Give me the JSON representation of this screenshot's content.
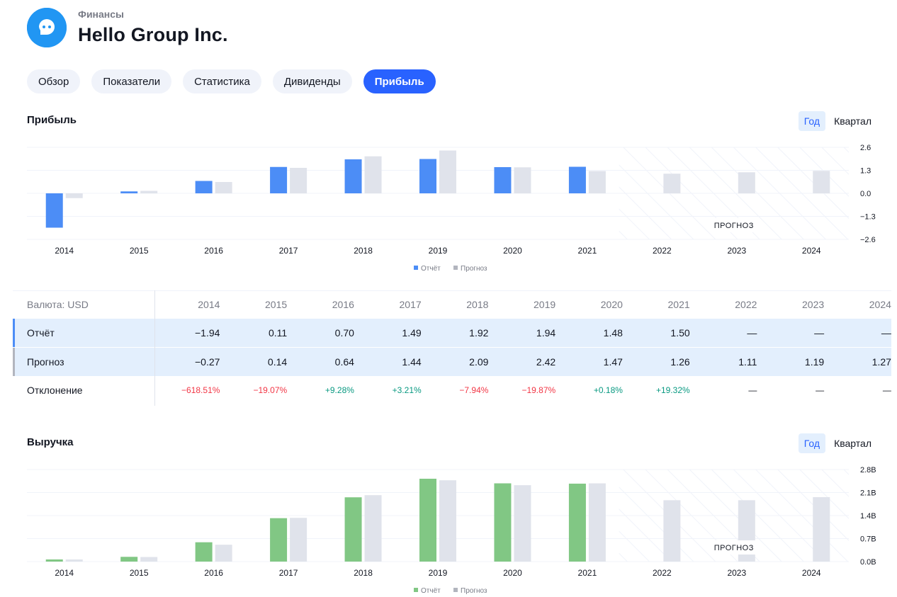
{
  "header": {
    "breadcrumb": "Финансы",
    "title": "Hello Group Inc."
  },
  "tabs": [
    {
      "label": "Обзор",
      "active": false
    },
    {
      "label": "Показатели",
      "active": false
    },
    {
      "label": "Статистика",
      "active": false
    },
    {
      "label": "Дивиденды",
      "active": false
    },
    {
      "label": "Прибыль",
      "active": true
    }
  ],
  "colors": {
    "accent": "#2962ff",
    "earnings_bar": "#4c8df6",
    "revenue_bar": "#81c784",
    "estimate_bar": "#e0e3eb",
    "negative": "#f23645",
    "positive": "#089981"
  },
  "earnings": {
    "title": "Прибыль",
    "period_buttons": [
      {
        "label": "Год",
        "active": true
      },
      {
        "label": "Квартал",
        "active": false
      }
    ],
    "chart_data": {
      "type": "bar",
      "categories": [
        "2014",
        "2015",
        "2016",
        "2017",
        "2018",
        "2019",
        "2020",
        "2021",
        "2022",
        "2023",
        "2024"
      ],
      "series": [
        {
          "name": "Отчёт",
          "values": [
            -1.94,
            0.11,
            0.7,
            1.49,
            1.92,
            1.94,
            1.48,
            1.5,
            null,
            null,
            null
          ]
        },
        {
          "name": "Прогноз",
          "values": [
            -0.27,
            0.14,
            0.64,
            1.44,
            2.09,
            2.42,
            1.47,
            1.26,
            1.11,
            1.19,
            1.27
          ]
        }
      ],
      "yticks": [
        "2.6",
        "1.3",
        "0.0",
        "−1.3",
        "−2.6"
      ],
      "ylim": [
        -2.6,
        2.6
      ],
      "forecast_label": "ПРОГНОЗ",
      "forecast_from": "2022",
      "legend": [
        "Отчёт",
        "Прогноз"
      ],
      "legend_position": "bottom-center"
    }
  },
  "table": {
    "currency_label": "Валюта: USD",
    "years": [
      "2014",
      "2015",
      "2016",
      "2017",
      "2018",
      "2019",
      "2020",
      "2021",
      "2022",
      "2023",
      "2024"
    ],
    "rows": [
      {
        "label": "Отчёт",
        "values": [
          "−1.94",
          "0.11",
          "0.70",
          "1.49",
          "1.92",
          "1.94",
          "1.48",
          "1.50",
          "—",
          "—",
          "—"
        ]
      },
      {
        "label": "Прогноз",
        "values": [
          "−0.27",
          "0.14",
          "0.64",
          "1.44",
          "2.09",
          "2.42",
          "1.47",
          "1.26",
          "1.11",
          "1.19",
          "1.27"
        ]
      },
      {
        "label": "Отклонение",
        "values": [
          "−618.51%",
          "−19.07%",
          "+9.28%",
          "+3.21%",
          "−7.94%",
          "−19.87%",
          "+0.18%",
          "+19.32%",
          "—",
          "—",
          "—"
        ]
      }
    ]
  },
  "revenue": {
    "title": "Выручка",
    "period_buttons": [
      {
        "label": "Год",
        "active": true
      },
      {
        "label": "Квартал",
        "active": false
      }
    ],
    "chart_data": {
      "type": "bar",
      "categories": [
        "2014",
        "2015",
        "2016",
        "2017",
        "2018",
        "2019",
        "2020",
        "2021",
        "2022",
        "2023",
        "2024"
      ],
      "series": [
        {
          "name": "Отчёт",
          "values": [
            0.14,
            0.31,
            1.26,
            2.83,
            4.19,
            5.4,
            5.1,
            5.08,
            null,
            null,
            null
          ]
        },
        {
          "name": "Прогноз",
          "values": [
            0.14,
            0.3,
            1.1,
            2.85,
            4.33,
            5.3,
            4.98,
            5.1,
            4.0,
            4.0,
            4.2
          ]
        }
      ],
      "yticks": [
        "2.8B",
        "2.1B",
        "1.4B",
        "0.7B",
        "0.0B"
      ],
      "ylim": [
        0,
        6
      ],
      "forecast_label": "ПРОГНОЗ",
      "forecast_from": "2022",
      "legend": [
        "Отчёт",
        "Прогноз"
      ],
      "legend_position": "bottom-center"
    }
  }
}
